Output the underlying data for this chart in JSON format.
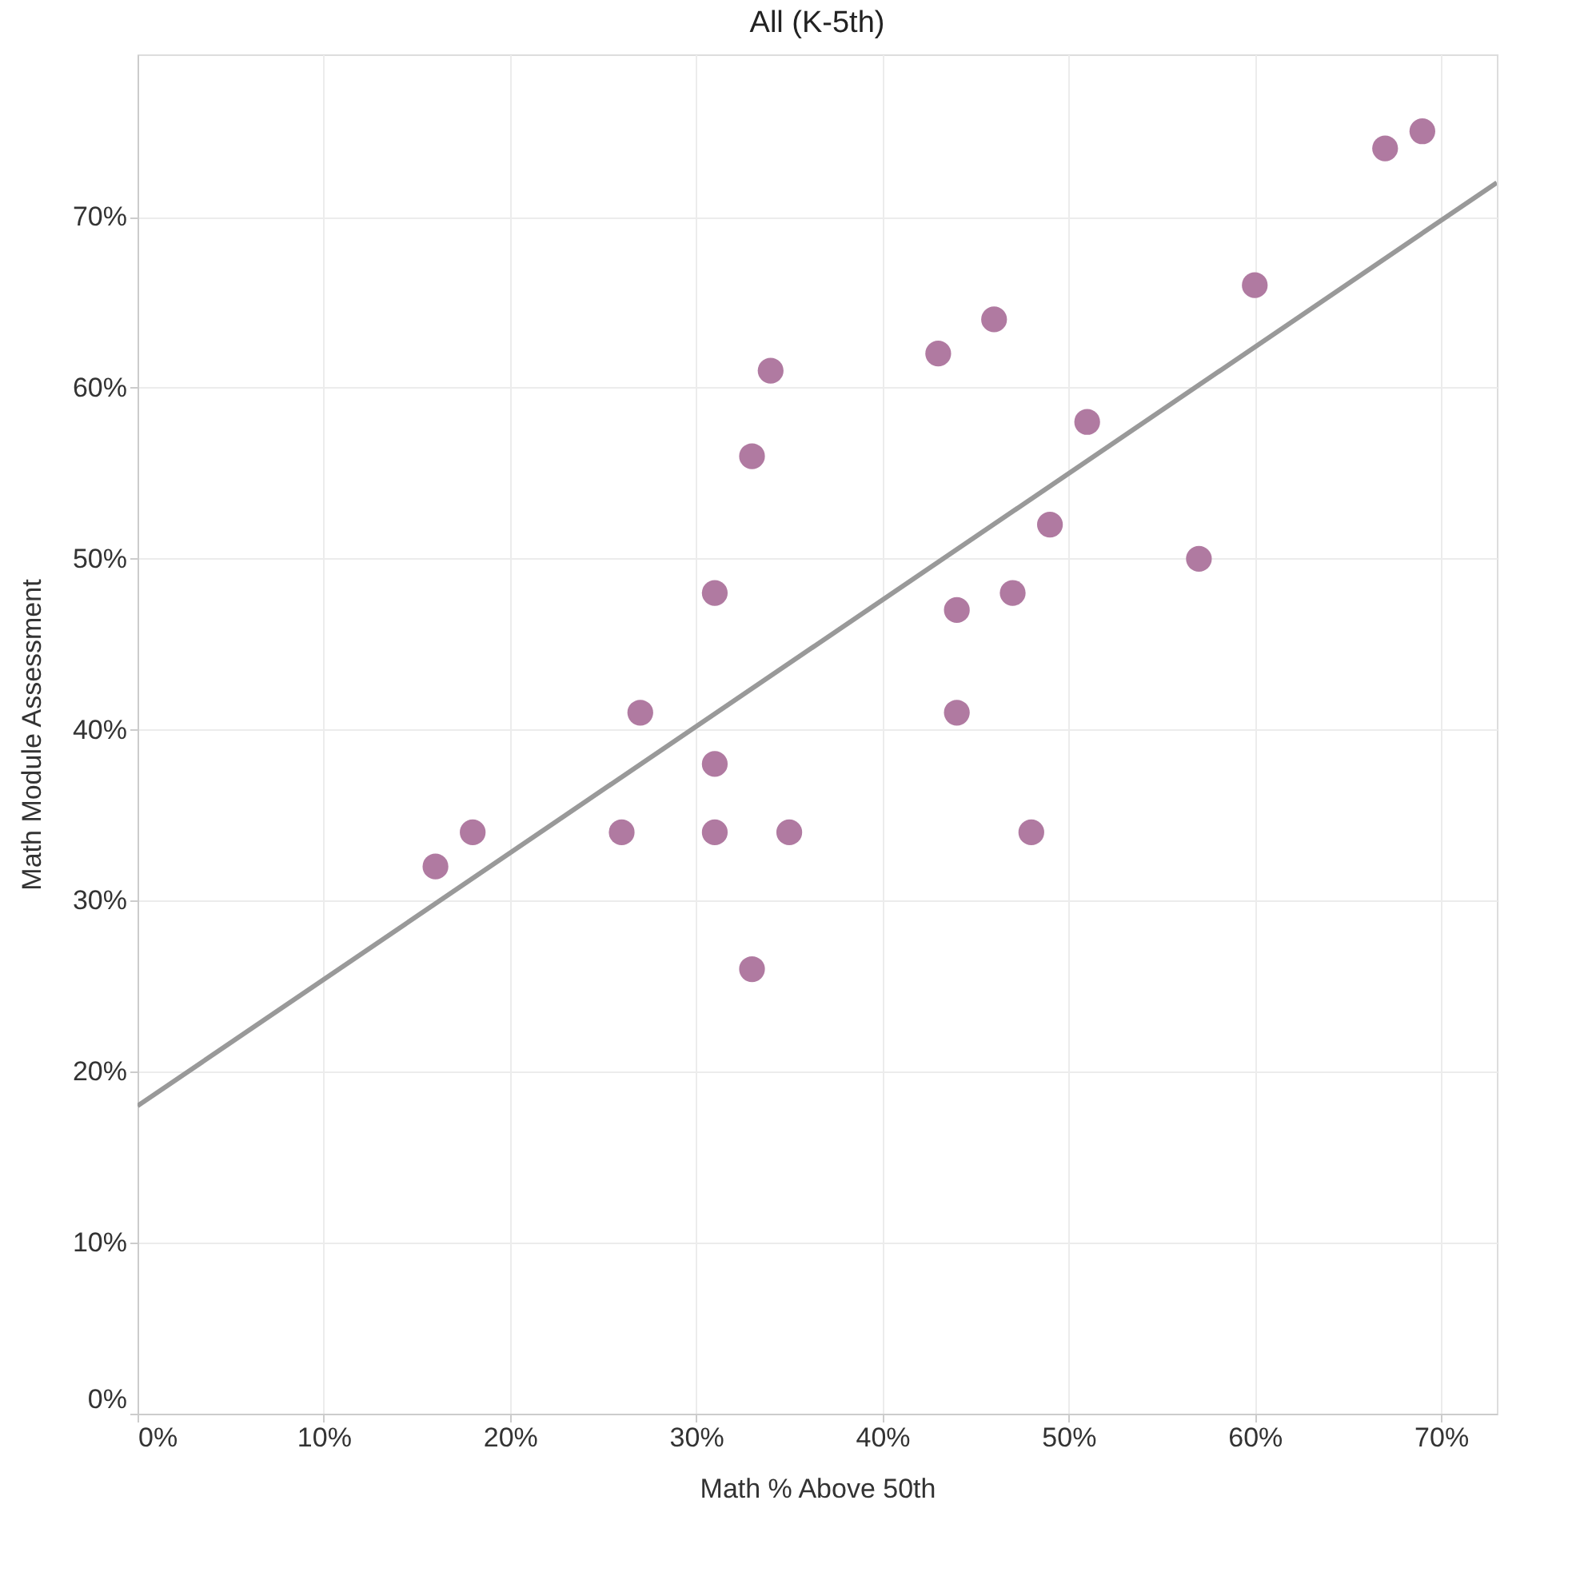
{
  "chart_data": {
    "type": "scatter",
    "title": "All (K-5th)",
    "xlabel": "Math % Above 50th",
    "ylabel": "Math Module Assessment",
    "xlim": [
      0,
      73
    ],
    "ylim": [
      0,
      79.5
    ],
    "xticks": [
      {
        "value": 0,
        "label": "0%"
      },
      {
        "value": 10,
        "label": "10%"
      },
      {
        "value": 20,
        "label": "20%"
      },
      {
        "value": 30,
        "label": "30%"
      },
      {
        "value": 40,
        "label": "40%"
      },
      {
        "value": 50,
        "label": "50%"
      },
      {
        "value": 60,
        "label": "60%"
      },
      {
        "value": 70,
        "label": "70%"
      }
    ],
    "yticks": [
      {
        "value": 0,
        "label": "0%"
      },
      {
        "value": 10,
        "label": "10%"
      },
      {
        "value": 20,
        "label": "20%"
      },
      {
        "value": 30,
        "label": "30%"
      },
      {
        "value": 40,
        "label": "40%"
      },
      {
        "value": 50,
        "label": "50%"
      },
      {
        "value": 60,
        "label": "60%"
      },
      {
        "value": 70,
        "label": "70%"
      }
    ],
    "grid": true,
    "series": [
      {
        "marker": "circle",
        "color": "#b07aa1",
        "x": [
          16,
          18,
          26,
          27,
          31,
          31,
          31,
          33,
          33,
          34,
          35,
          43,
          44,
          44,
          46,
          47,
          48,
          49,
          51,
          57,
          60,
          67,
          69
        ],
        "values": [
          32,
          34,
          34,
          41,
          48,
          38,
          34,
          56,
          26,
          61,
          34,
          62,
          47,
          41,
          64,
          48,
          34,
          52,
          58,
          50,
          66,
          74,
          75
        ]
      },
      {
        "type": "line",
        "color": "#999999",
        "line_style": "solid",
        "x": [
          0,
          73
        ],
        "values": [
          18,
          72
        ]
      }
    ]
  }
}
